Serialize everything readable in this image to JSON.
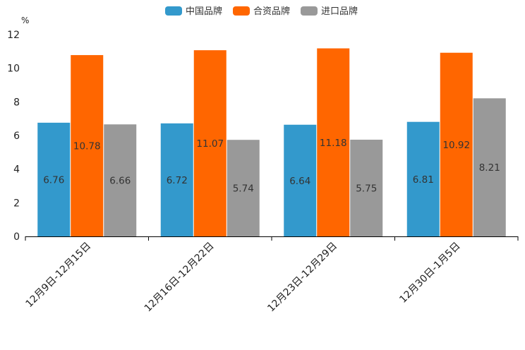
{
  "chart_data": {
    "type": "bar",
    "unit": "%",
    "categories": [
      "12月9日-12月15日",
      "12月16日-12月22日",
      "12月23日-12月29日",
      "12月30日-1月5日"
    ],
    "series": [
      {
        "name": "中国品牌",
        "color": "#3399cc",
        "values": [
          6.76,
          6.72,
          6.64,
          6.81
        ]
      },
      {
        "name": "合资品牌",
        "color": "#ff6600",
        "values": [
          10.78,
          11.07,
          11.18,
          10.92
        ]
      },
      {
        "name": "进口品牌",
        "color": "#999999",
        "values": [
          6.66,
          5.74,
          5.75,
          8.21
        ]
      }
    ],
    "ylim": [
      0,
      12
    ],
    "yticks": [
      "0",
      "2",
      "4",
      "6",
      "8",
      "10",
      "12"
    ],
    "legend_position": "top-center",
    "grid": false
  }
}
